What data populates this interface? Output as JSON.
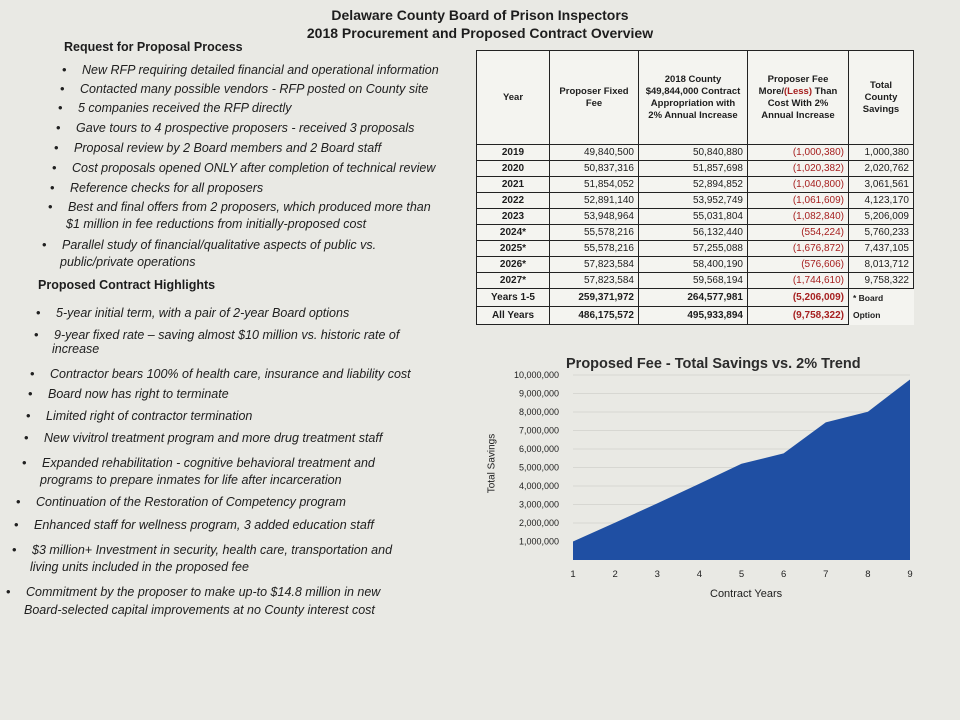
{
  "header": {
    "title": "Delaware County Board of Prison Inspectors",
    "subtitle": "2018 Procurement and Proposed Contract Overview"
  },
  "rfp": {
    "heading": "Request for Proposal Process",
    "items": [
      "New RFP requiring detailed financial and operational information",
      "Contacted many possible vendors - RFP posted on County site",
      "5 companies received the RFP directly",
      "Gave tours to 4 prospective proposers - received 3 proposals",
      "Proposal review by 2 Board members and 2 Board staff",
      "Cost proposals opened ONLY after completion of technical review",
      "Reference checks for all proposers",
      "Best and final offers from 2 proposers, which produced more than",
      "$1 million in fee reductions from initially-proposed cost",
      "Parallel study of financial/qualitative aspects of public vs.",
      "public/private operations"
    ]
  },
  "highlights": {
    "heading": "Proposed Contract Highlights",
    "items": [
      "5-year initial term, with a pair of 2-year Board options",
      "9-year fixed rate – saving almost $10 million vs. historic rate of",
      "increase",
      "Contractor bears 100% of health care, insurance and liability cost",
      "Board now has right to terminate",
      "Limited right of contractor termination",
      "New vivitrol treatment program and more drug treatment staff",
      "Expanded rehabilitation - cognitive behavioral treatment and",
      "programs to prepare inmates for life after incarceration",
      "Continuation of the Restoration of Competency program",
      "Enhanced staff for wellness program, 3 added education staff",
      "$3 million+ Investment in security, health care, transportation and",
      "living units included in the proposed fee",
      "Commitment by the proposer to make up-to $14.8 million in new",
      "Board-selected capital improvements at no County interest cost"
    ]
  },
  "table": {
    "headers": {
      "year": "Year",
      "fixed_fee": "Proposer Fixed Fee",
      "appropriation": "2018 County $49,844,000 Contract Appropriation with 2% Annual Increase",
      "difference_a": "Proposer Fee More/",
      "difference_neg": "(Less)",
      "difference_b": " Than Cost With 2% Annual Increase",
      "savings": "Total County Savings"
    },
    "rows": [
      {
        "year": "2019",
        "fee": "49,840,500",
        "approp": "50,840,880",
        "diff": "(1,000,380)",
        "savings": "1,000,380"
      },
      {
        "year": "2020",
        "fee": "50,837,316",
        "approp": "51,857,698",
        "diff": "(1,020,382)",
        "savings": "2,020,762"
      },
      {
        "year": "2021",
        "fee": "51,854,052",
        "approp": "52,894,852",
        "diff": "(1,040,800)",
        "savings": "3,061,561"
      },
      {
        "year": "2022",
        "fee": "52,891,140",
        "approp": "53,952,749",
        "diff": "(1,061,609)",
        "savings": "4,123,170"
      },
      {
        "year": "2023",
        "fee": "53,948,964",
        "approp": "55,031,804",
        "diff": "(1,082,840)",
        "savings": "5,206,009"
      },
      {
        "year": "2024*",
        "fee": "55,578,216",
        "approp": "56,132,440",
        "diff": "(554,224)",
        "savings": "5,760,233"
      },
      {
        "year": "2025*",
        "fee": "55,578,216",
        "approp": "57,255,088",
        "diff": "(1,676,872)",
        "savings": "7,437,105"
      },
      {
        "year": "2026*",
        "fee": "57,823,584",
        "approp": "58,400,190",
        "diff": "(576,606)",
        "savings": "8,013,712"
      },
      {
        "year": "2027*",
        "fee": "57,823,584",
        "approp": "59,568,194",
        "diff": "(1,744,610)",
        "savings": "9,758,322"
      }
    ],
    "totals": [
      {
        "year": "Years 1-5",
        "fee": "259,371,972",
        "approp": "264,577,981",
        "diff": "(5,206,009)"
      },
      {
        "year": "All Years",
        "fee": "486,175,572",
        "approp": "495,933,894",
        "diff": "(9,758,322)"
      }
    ],
    "footnote": "* Board Option"
  },
  "chart_data": {
    "type": "area",
    "title": "Proposed Fee - Total Savings vs. 2% Trend",
    "xlabel": "Contract Years",
    "ylabel": "Total Savings",
    "x": [
      1,
      2,
      3,
      4,
      5,
      6,
      7,
      8,
      9
    ],
    "values": [
      1000380,
      2020762,
      3061561,
      4123170,
      5206009,
      5760233,
      7437105,
      8013712,
      9758322
    ],
    "ylim": [
      0,
      10000000
    ],
    "yticks": [
      "1,000,000",
      "2,000,000",
      "3,000,000",
      "4,000,000",
      "5,000,000",
      "6,000,000",
      "7,000,000",
      "8,000,000",
      "9,000,000",
      "10,000,000"
    ],
    "xticks": [
      "1",
      "2",
      "3",
      "4",
      "5",
      "6",
      "7",
      "8",
      "9"
    ],
    "grid": true,
    "color": "#1f4fa3"
  }
}
